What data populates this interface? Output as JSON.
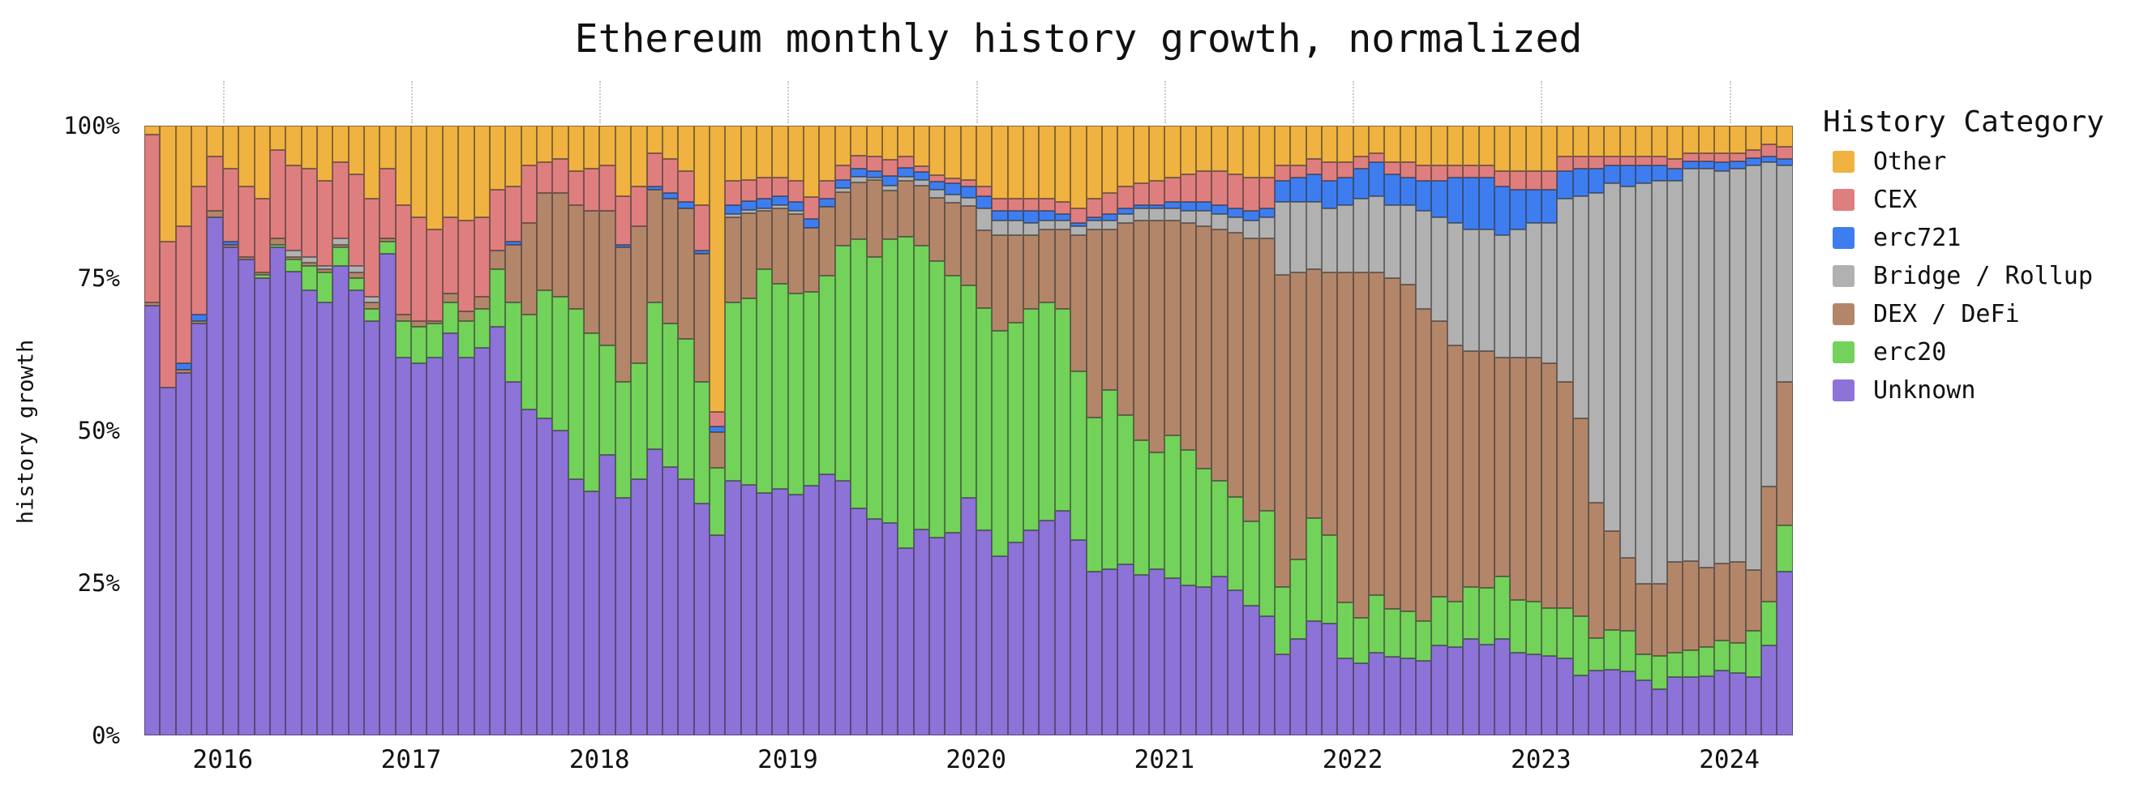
{
  "chart_data": {
    "type": "bar",
    "stacked": true,
    "normalized": true,
    "title": "Ethereum monthly history growth, normalized",
    "ylabel": "history growth",
    "xlabel": "",
    "ylim": [
      0,
      100
    ],
    "grid": "dotted year gridline stubs above plot",
    "legend_position": "right",
    "y_ticks": [
      {
        "label": "0%",
        "value": 0
      },
      {
        "label": "25%",
        "value": 25
      },
      {
        "label": "50%",
        "value": 50
      },
      {
        "label": "75%",
        "value": 75
      },
      {
        "label": "100%",
        "value": 100
      }
    ],
    "x_year_ticks": [
      {
        "label": "2016",
        "month_index": 5
      },
      {
        "label": "2017",
        "month_index": 17
      },
      {
        "label": "2018",
        "month_index": 29
      },
      {
        "label": "2019",
        "month_index": 41
      },
      {
        "label": "2020",
        "month_index": 53
      },
      {
        "label": "2021",
        "month_index": 65
      },
      {
        "label": "2022",
        "month_index": 77
      },
      {
        "label": "2023",
        "month_index": 89
      },
      {
        "label": "2024",
        "month_index": 101
      }
    ],
    "months": [
      "2015-08",
      "2015-09",
      "2015-10",
      "2015-11",
      "2015-12",
      "2016-01",
      "2016-02",
      "2016-03",
      "2016-04",
      "2016-05",
      "2016-06",
      "2016-07",
      "2016-08",
      "2016-09",
      "2016-10",
      "2016-11",
      "2016-12",
      "2017-01",
      "2017-02",
      "2017-03",
      "2017-04",
      "2017-05",
      "2017-06",
      "2017-07",
      "2017-08",
      "2017-09",
      "2017-10",
      "2017-11",
      "2017-12",
      "2018-01",
      "2018-02",
      "2018-03",
      "2018-04",
      "2018-05",
      "2018-06",
      "2018-07",
      "2018-08",
      "2018-09",
      "2018-10",
      "2018-11",
      "2018-12",
      "2019-01",
      "2019-02",
      "2019-03",
      "2019-04",
      "2019-05",
      "2019-06",
      "2019-07",
      "2019-08",
      "2019-09",
      "2019-10",
      "2019-11",
      "2019-12",
      "2020-01",
      "2020-02",
      "2020-03",
      "2020-04",
      "2020-05",
      "2020-06",
      "2020-07",
      "2020-08",
      "2020-09",
      "2020-10",
      "2020-11",
      "2020-12",
      "2021-01",
      "2021-02",
      "2021-03",
      "2021-04",
      "2021-05",
      "2021-06",
      "2021-07",
      "2021-08",
      "2021-09",
      "2021-10",
      "2021-11",
      "2021-12",
      "2022-01",
      "2022-02",
      "2022-03",
      "2022-04",
      "2022-05",
      "2022-06",
      "2022-07",
      "2022-08",
      "2022-09",
      "2022-10",
      "2022-11",
      "2022-12",
      "2023-01",
      "2023-02",
      "2023-03",
      "2023-04",
      "2023-05",
      "2023-06",
      "2023-07",
      "2023-08",
      "2023-09",
      "2023-10",
      "2023-11",
      "2023-12",
      "2024-01",
      "2024-02",
      "2024-03",
      "2024-04"
    ],
    "series_stack_order": "bottom to top",
    "series": [
      {
        "name": "Unknown",
        "color": "#8d72d8",
        "values": [
          70.5,
          57,
          59.5,
          67.5,
          85,
          80,
          78,
          75,
          80,
          76,
          73,
          71,
          77,
          73,
          68,
          79,
          62,
          61,
          62,
          66,
          62,
          63.5,
          67,
          58,
          53.5,
          52,
          50,
          42,
          40,
          46,
          39,
          42,
          47,
          44,
          42,
          38,
          32.8,
          41.8,
          41.1,
          39.8,
          40.4,
          39.5,
          41,
          42.8,
          41.8,
          37.3,
          35.5,
          34.8,
          30.7,
          33.8,
          32.5,
          33.3,
          39,
          33.6,
          29.4,
          31.7,
          33.7,
          35.3,
          36.8,
          32,
          26.9,
          27.2,
          28,
          26.3,
          27.3,
          25.8,
          24.6,
          24.3,
          26,
          23.8,
          21.3,
          19.5,
          13.3,
          15.8,
          18.7,
          18.3,
          12.7,
          11.8,
          13.6,
          12.9,
          12.7,
          12.2,
          14.7,
          14.5,
          15.8,
          14.9,
          15.8,
          13.6,
          13.3,
          13.1,
          12.7,
          9.8,
          10.7,
          10.8,
          10.5,
          9,
          7.6,
          9.6,
          9.6,
          9.7,
          10.7,
          10.2,
          9.6,
          14.7,
          26.9
        ]
      },
      {
        "name": "erc20",
        "color": "#72d259",
        "values": [
          0,
          0,
          0,
          0,
          0,
          0,
          0,
          0.5,
          0.5,
          2,
          4,
          5,
          3,
          2,
          2,
          2,
          6,
          6,
          5.5,
          5,
          6,
          6.5,
          9.5,
          13,
          15.5,
          21,
          22,
          28,
          26,
          18,
          19,
          19,
          24,
          23.5,
          23,
          20,
          11.1,
          29.2,
          30.6,
          36.7,
          33.7,
          33,
          31.7,
          32.6,
          38.5,
          44.1,
          43,
          46.6,
          51.1,
          46.5,
          45.3,
          42.1,
          34.8,
          36.5,
          37,
          36,
          36.3,
          35.7,
          33.2,
          27.7,
          25.2,
          29.4,
          24.5,
          22.1,
          19.1,
          23.4,
          22.2,
          19.4,
          15.7,
          15.3,
          13.8,
          17.4,
          11.1,
          13.1,
          16.9,
          14.5,
          9.1,
          7.5,
          9.4,
          7.9,
          7.7,
          6.5,
          8,
          7.5,
          8.6,
          9.3,
          10.2,
          8.6,
          8.7,
          7.8,
          8.2,
          9.8,
          5.3,
          6.5,
          6.6,
          4.3,
          5.5,
          4,
          4.4,
          4.8,
          4.9,
          4.9,
          7.5,
          7.3,
          7.5
        ]
      },
      {
        "name": "DEX / DeFi",
        "color": "#b3866a",
        "values": [
          0.5,
          0,
          0.5,
          0.5,
          1,
          0.5,
          0.5,
          0.5,
          1,
          0.5,
          0.5,
          0.5,
          0.5,
          1,
          1,
          0.5,
          1,
          1,
          0.5,
          1.5,
          1.5,
          2,
          3,
          9.5,
          15,
          16,
          17,
          17,
          20,
          22,
          22,
          22.5,
          18.5,
          20.5,
          21.5,
          21,
          5.8,
          14,
          14,
          9.5,
          12.4,
          13,
          10.5,
          11.3,
          8.8,
          9.3,
          12.6,
          8,
          9.1,
          9.9,
          10.4,
          12,
          13.1,
          12.8,
          15.6,
          14.3,
          12,
          12,
          13,
          22.3,
          30.9,
          26.4,
          31.5,
          36.1,
          38.1,
          35.3,
          37.2,
          39.8,
          41.3,
          43.4,
          46.4,
          44.6,
          51.1,
          47.1,
          40.9,
          43.2,
          54.2,
          56.7,
          53,
          54.2,
          53.6,
          51.3,
          45.3,
          42,
          38.6,
          38.8,
          36,
          39.8,
          40,
          40.1,
          37.1,
          32.4,
          22.2,
          16.2,
          12,
          11.6,
          11.8,
          14.8,
          14.6,
          13,
          12.6,
          13.3,
          10,
          18.8,
          23.6
        ]
      },
      {
        "name": "Bridge / Rollup",
        "color": "#b1b1b1",
        "values": [
          0,
          0,
          0,
          0,
          0,
          0,
          0,
          0,
          0,
          1,
          1,
          0.5,
          1,
          1,
          1,
          0,
          0,
          0,
          0,
          0,
          0,
          0,
          0,
          0,
          0,
          0,
          0,
          0,
          0,
          0,
          0,
          0,
          0,
          0,
          0,
          0,
          0,
          0.5,
          0.5,
          0.5,
          0.5,
          0.5,
          0,
          0,
          0.7,
          0.9,
          0.4,
          0.7,
          0.7,
          0.9,
          1.3,
          1.3,
          1.3,
          3.5,
          2.5,
          2.5,
          2,
          1.5,
          1.5,
          1.5,
          1.5,
          1.5,
          1.5,
          2,
          2,
          2,
          2,
          2.5,
          2.5,
          2.5,
          3,
          3.5,
          12,
          11.5,
          11,
          10.5,
          11,
          12,
          12.5,
          12,
          13,
          16,
          17,
          20,
          20,
          20,
          20,
          21,
          22,
          23,
          30,
          36.5,
          50.8,
          57,
          60.9,
          65.6,
          66.1,
          62.6,
          64.4,
          65.5,
          64.3,
          64.6,
          66.4,
          53.2,
          35.5
        ]
      },
      {
        "name": "erc721",
        "color": "#3e7df0",
        "values": [
          0,
          0,
          1,
          1,
          0,
          0.5,
          0,
          0,
          0,
          0,
          0,
          0,
          0,
          0,
          0,
          0,
          0,
          0,
          0,
          0,
          0,
          0,
          0,
          0.5,
          0,
          0,
          0,
          0,
          0,
          0,
          0.5,
          0,
          0.5,
          1,
          1,
          0.5,
          1,
          1.5,
          1.5,
          1.5,
          1.5,
          1.5,
          1.5,
          1.3,
          1.3,
          1.3,
          1,
          1.6,
          1.5,
          1.3,
          1.3,
          1.8,
          1.8,
          2,
          1.5,
          1.5,
          2,
          1.5,
          1,
          0.5,
          0.5,
          1,
          1,
          0.5,
          0.5,
          1,
          1.5,
          1.5,
          1.5,
          1.5,
          1.5,
          1.5,
          3.5,
          4,
          4.5,
          4.5,
          4.5,
          5,
          5.5,
          5,
          4.5,
          5,
          6,
          7.5,
          8.5,
          8.5,
          8,
          6.5,
          5.5,
          5.5,
          4.5,
          4.5,
          4,
          3,
          3.5,
          3,
          2.5,
          2,
          1.2,
          1.2,
          1.5,
          1.2,
          1.2,
          1,
          1
        ]
      },
      {
        "name": "CEX",
        "color": "#df7e7e",
        "values": [
          27.5,
          24,
          22.5,
          21,
          9,
          12,
          11.5,
          12,
          14.5,
          14,
          14.5,
          14,
          12.5,
          15,
          16,
          11.5,
          18,
          17,
          15,
          12.5,
          15,
          13,
          10,
          9,
          9.5,
          5,
          5.5,
          5.5,
          7,
          7.5,
          8,
          6.5,
          5.5,
          5.5,
          5,
          7.5,
          2.4,
          4,
          3.5,
          3.5,
          3,
          3.5,
          3.6,
          2.9,
          2.4,
          2.2,
          2.4,
          2.7,
          1.8,
          0.9,
          1.1,
          0.9,
          1.1,
          1.6,
          2,
          2,
          2,
          2,
          2,
          2.5,
          3,
          3.5,
          3.5,
          3.5,
          4,
          4,
          4.5,
          5,
          5.5,
          5.5,
          5.5,
          5,
          2.5,
          2,
          2.5,
          3,
          2.5,
          2,
          1.5,
          2,
          2.5,
          2.5,
          2.5,
          2,
          2,
          2,
          2.5,
          3,
          3,
          3,
          2.5,
          2,
          2,
          1.5,
          1.5,
          1.5,
          1.5,
          1.5,
          1.3,
          1.3,
          1.5,
          1.3,
          1.3,
          2,
          2
        ]
      },
      {
        "name": "Other",
        "color": "#f0b240",
        "values": [
          1.5,
          19,
          16.5,
          10,
          5,
          7,
          10,
          12,
          4,
          6.5,
          7,
          9,
          6,
          8,
          12,
          7,
          13,
          15,
          17,
          15,
          15.5,
          15,
          10.5,
          10,
          6.5,
          6,
          5.5,
          7.5,
          7,
          6.5,
          11.5,
          10,
          4.5,
          5.5,
          7.5,
          13,
          46.9,
          9,
          8.9,
          8.5,
          8.5,
          9,
          11.7,
          9.1,
          6.5,
          4.9,
          5.1,
          5.6,
          5.1,
          6.7,
          8.1,
          8.6,
          8.9,
          10,
          12,
          12,
          12,
          12,
          12.5,
          13.5,
          12,
          11,
          10,
          9.5,
          9,
          8.5,
          8,
          7.5,
          7.5,
          8,
          8.5,
          8.5,
          6.5,
          6.5,
          5.5,
          6,
          6,
          5,
          4.5,
          6,
          6,
          6.5,
          6.5,
          6.5,
          6.5,
          6.5,
          7.5,
          7.5,
          7.5,
          7.5,
          5,
          5,
          5,
          5,
          5,
          5,
          5,
          5.5,
          4.5,
          4.5,
          4.5,
          4.5,
          4,
          3,
          3.5
        ]
      }
    ]
  },
  "legend": {
    "title": "History Category",
    "items": [
      {
        "label": "Other",
        "color": "#f0b240"
      },
      {
        "label": "CEX",
        "color": "#df7e7e"
      },
      {
        "label": "erc721",
        "color": "#3e7df0"
      },
      {
        "label": "Bridge / Rollup",
        "color": "#b1b1b1"
      },
      {
        "label": "DEX / DeFi",
        "color": "#b3866a"
      },
      {
        "label": "erc20",
        "color": "#72d259"
      },
      {
        "label": "Unknown",
        "color": "#8d72d8"
      }
    ]
  },
  "style": {
    "bar_stroke": "#2a2a2a",
    "grid_color": "#c9c9c9",
    "text_color": "#111111",
    "background": "#ffffff"
  }
}
